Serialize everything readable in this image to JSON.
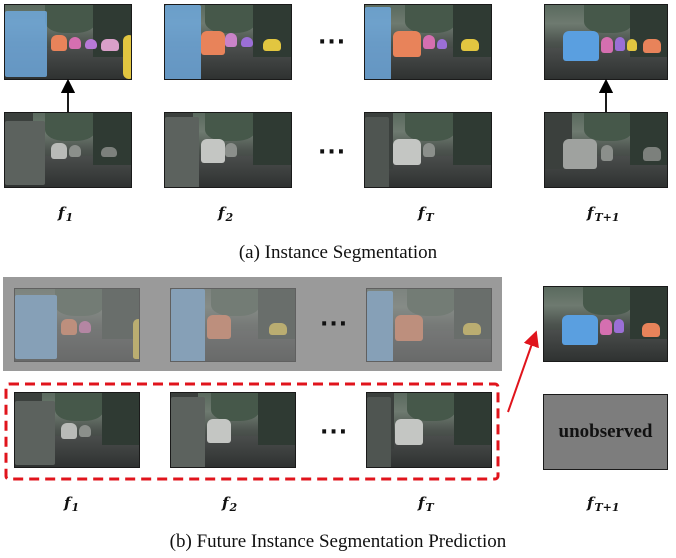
{
  "ellipsis": "···",
  "labels": {
    "f1": {
      "base": "f",
      "sub": "1"
    },
    "f2": {
      "base": "f",
      "sub": "2"
    },
    "fT": {
      "base": "f",
      "sub": "T"
    },
    "fT1": {
      "base": "f",
      "sub": "T+1"
    }
  },
  "panel_a": {
    "caption": "(a)  Instance Segmentation"
  },
  "panel_b": {
    "caption": "(b)  Future Instance Segmentation Prediction",
    "unobserved_label": "unobserved"
  },
  "colors": {
    "dashed_box": "#e0141c",
    "arrow_red": "#e0141c",
    "arrow_black": "#000000",
    "seg_blue": "#5a9fe0",
    "seg_orange": "#e8835a",
    "seg_pink": "#d56fb0",
    "seg_yellow": "#e2c640",
    "seg_purple": "#9b6fd6"
  }
}
